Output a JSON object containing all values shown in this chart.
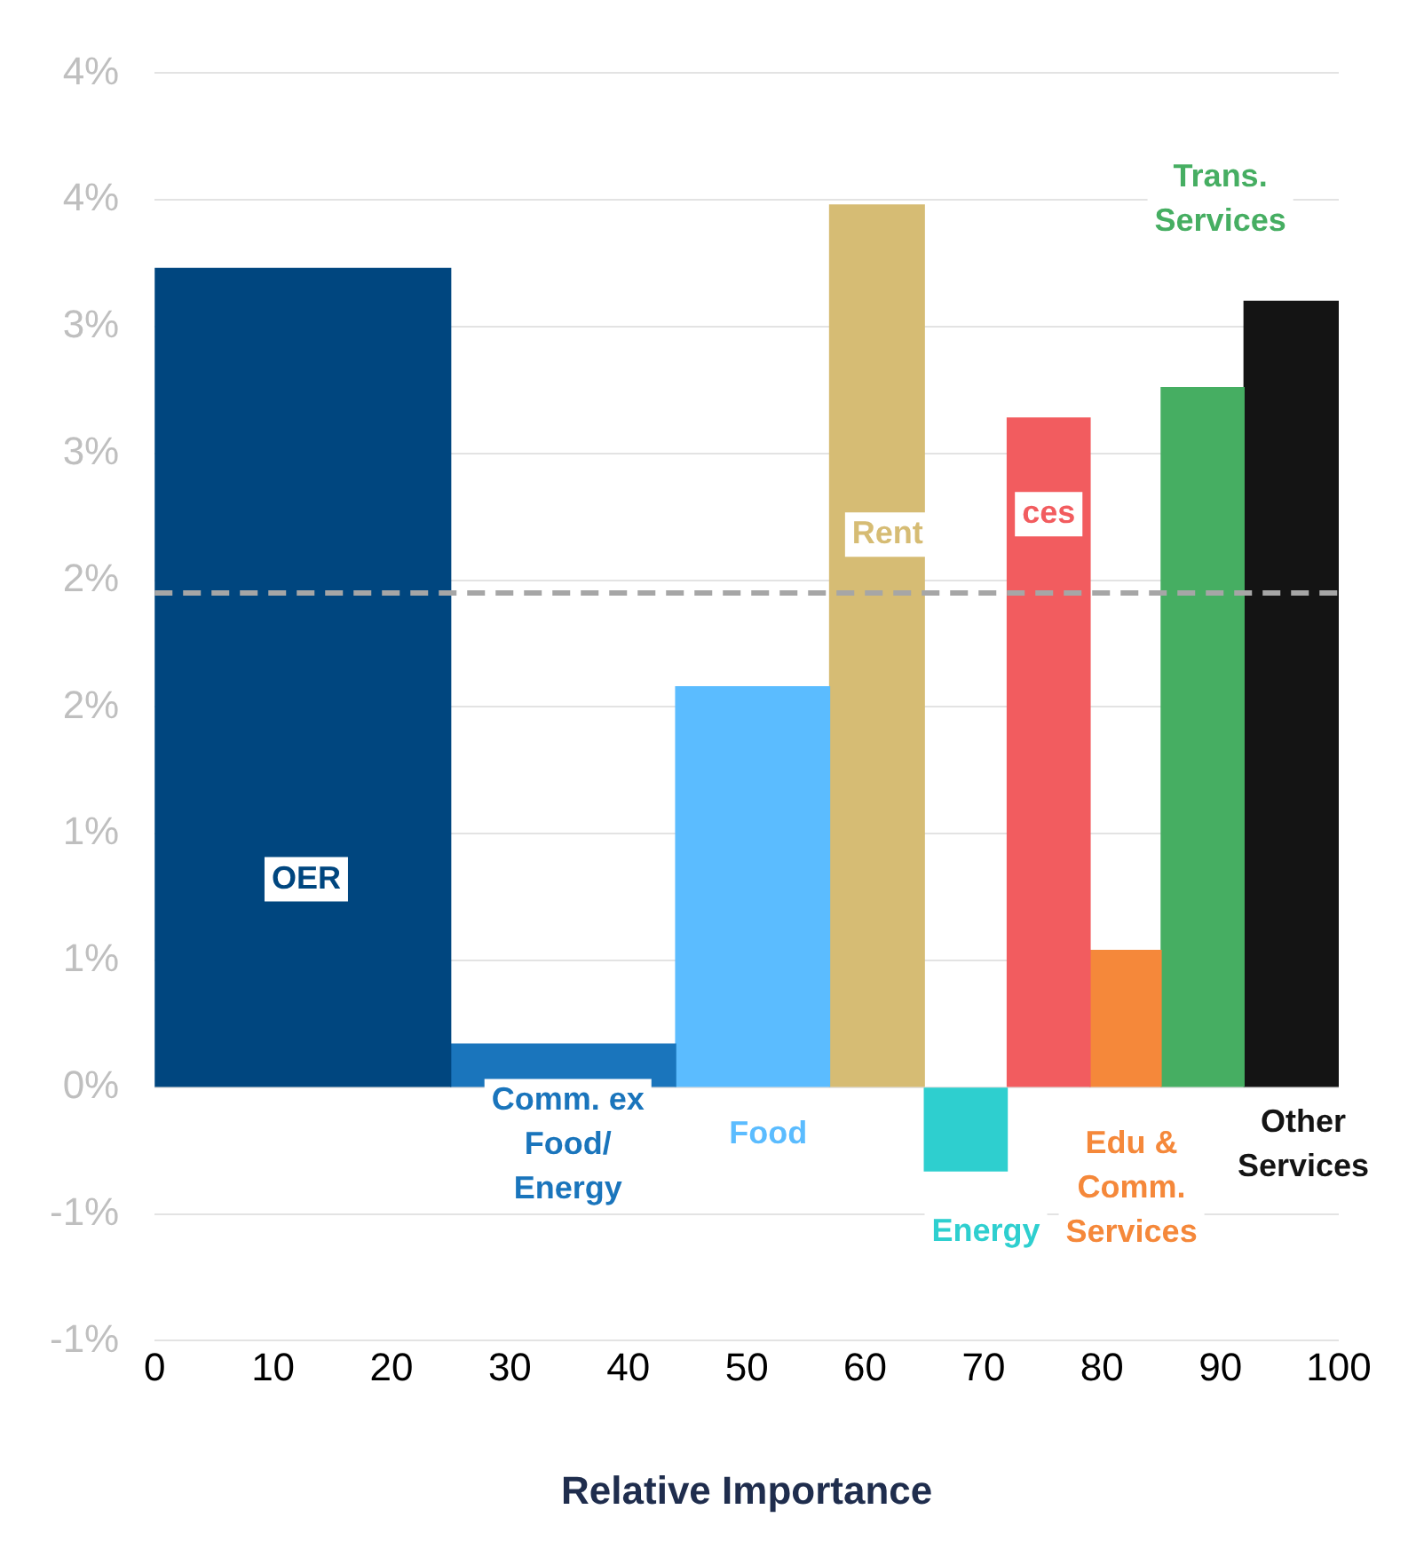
{
  "chart_data": {
    "type": "histogram",
    "xlabel": "Relative Importance",
    "bins": [
      0,
      25,
      44,
      57,
      65,
      72,
      79,
      85,
      92,
      100
    ],
    "values": [
      3.23,
      0.17,
      1.58,
      3.48,
      -0.33,
      2.64,
      0.54,
      2.76,
      3.1
    ],
    "colors": [
      "#00467f",
      "#1a75bc",
      "#5bbcff",
      "#d6bc74",
      "#2ecfcf",
      "#f25c5f",
      "#f5883a",
      "#46ae62",
      "#141414"
    ],
    "xlim": [
      0,
      100
    ],
    "xticks": [
      0,
      10,
      20,
      30,
      40,
      50,
      60,
      70,
      80,
      90,
      100
    ],
    "ylim": [
      -1,
      4
    ],
    "yticks": [
      {
        "value": -1,
        "label": "-1%"
      },
      {
        "value": -0.5,
        "label": "-1%"
      },
      {
        "value": 0,
        "label": "0%"
      },
      {
        "value": 0.5,
        "label": "1%"
      },
      {
        "value": 1,
        "label": "1%"
      },
      {
        "value": 1.5,
        "label": "2%"
      },
      {
        "value": 2,
        "label": "2%"
      },
      {
        "value": 2.5,
        "label": "3%"
      },
      {
        "value": 3,
        "label": "3%"
      },
      {
        "value": 3.5,
        "label": "4%"
      },
      {
        "value": 4,
        "label": "4%"
      }
    ],
    "grid": "y",
    "legend": false,
    "ref_lines": [
      {
        "axis": "y",
        "value": 1.95,
        "color": "#a6a6a6",
        "line_style": "dashed"
      }
    ],
    "annotations": [
      "OER",
      "Comm. ex\nFood/\nEnergy",
      "Food",
      "Rent",
      "Energy",
      "ces",
      "Edu &\nComm.\nServices",
      "Trans.\nServices",
      "Other\nServices"
    ]
  }
}
